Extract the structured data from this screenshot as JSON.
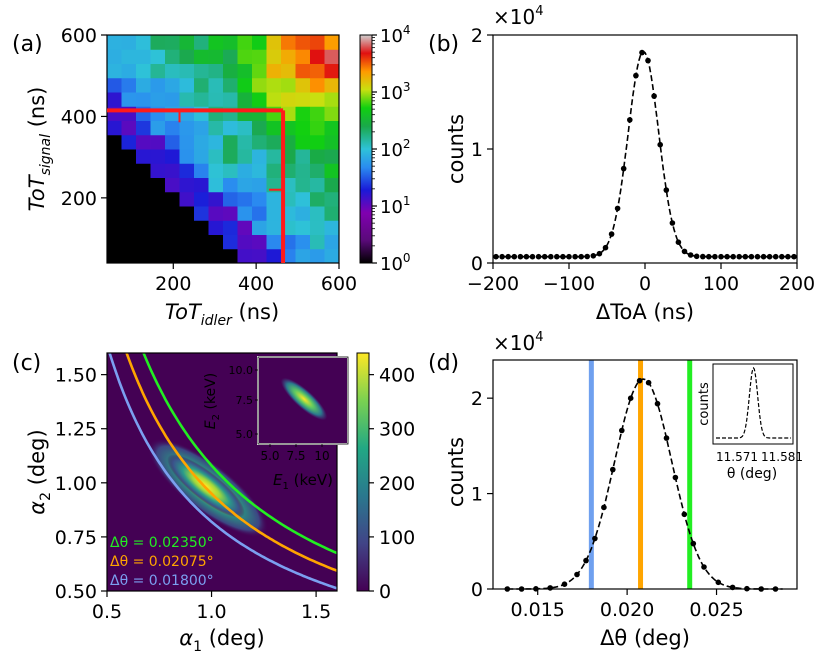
{
  "chart_data": [
    {
      "panel": "(a)",
      "type": "heatmap",
      "xlabel_main": "ToT",
      "xlabel_sub": "idler",
      "xlabel_unit": " (ns)",
      "ylabel_main": "ToT",
      "ylabel_sub": "signal",
      "ylabel_unit": " (ns)",
      "xlim": [
        40,
        600
      ],
      "ylim": [
        40,
        600
      ],
      "xticks": [
        200,
        400,
        600
      ],
      "yticks": [
        200,
        400,
        600
      ],
      "colorbar": {
        "scale": "log",
        "ticks": [
          {
            "base": "10",
            "exp": "0",
            "value": 1
          },
          {
            "base": "10",
            "exp": "1",
            "value": 10
          },
          {
            "base": "10",
            "exp": "2",
            "value": 100
          },
          {
            "base": "10",
            "exp": "3",
            "value": 1000
          },
          {
            "base": "10",
            "exp": "4",
            "value": 10000
          }
        ]
      },
      "cut_lines": {
        "signal_ns": 415,
        "idler_ns": 465,
        "color": "#ff1a1a"
      },
      "grid_size": 16
    },
    {
      "panel": "(b)",
      "type": "line",
      "xlabel": "ΔToA (ns)",
      "ylabel": "counts",
      "multiplier": {
        "base": "×10",
        "exp": "4"
      },
      "xlim": [
        -200,
        200
      ],
      "ylim": [
        0,
        2
      ],
      "xticks": [
        -200,
        -100,
        0,
        100,
        200
      ],
      "yticks": [
        0,
        1,
        2
      ],
      "fit": {
        "amplitude": 1.8,
        "center": -2,
        "sigma": 20,
        "baseline": 0.055
      },
      "points_x_step": 8
    },
    {
      "panel": "(c)",
      "type": "heatmap",
      "xlabel_main": "α",
      "xlabel_sub": "1",
      "xlabel_unit": " (deg)",
      "ylabel_main": "α",
      "ylabel_sub": "2",
      "ylabel_unit": " (deg)",
      "xlim": [
        0.5,
        1.6
      ],
      "ylim": [
        0.5,
        1.6
      ],
      "xticks": [
        0.5,
        1.0,
        1.5
      ],
      "yticks": [
        0.5,
        0.75,
        1.0,
        1.25,
        1.5
      ],
      "colorbar": {
        "min": 0,
        "max": 440,
        "ticks": [
          0,
          100,
          200,
          300,
          400
        ]
      },
      "curves": [
        {
          "label": "Δθ = 0.02350°",
          "product": 1.08,
          "color": "#22ee22"
        },
        {
          "label": "Δθ = 0.02075°",
          "product": 0.95,
          "color": "#ffa500"
        },
        {
          "label": "Δθ = 0.01800°",
          "product": 0.82,
          "color": "#7b9ff0"
        }
      ],
      "inset": {
        "type": "heatmap",
        "xlabel_main": "E",
        "xlabel_sub": "1",
        "xlabel_unit": " (keV)",
        "ylabel_main": "E",
        "ylabel_sub": "2",
        "ylabel_unit": " (keV)",
        "xticks": [
          "5.0",
          "7.5",
          "10"
        ],
        "yticks": [
          "5.0",
          "7.5",
          "10.0"
        ]
      }
    },
    {
      "panel": "(d)",
      "type": "line",
      "xlabel": "Δθ (deg)",
      "ylabel": "counts",
      "multiplier": {
        "base": "×10",
        "exp": "4"
      },
      "xlim": [
        0.0125,
        0.0295
      ],
      "ylim": [
        0,
        2.4
      ],
      "xticks": [
        0.015,
        0.02,
        0.025
      ],
      "xtick_labels": [
        "0.015",
        "0.020",
        "0.025"
      ],
      "yticks": [
        0,
        1,
        2
      ],
      "fit": {
        "amplitude": 2.2,
        "center": 0.0209,
        "sigma": 0.0016,
        "baseline": 0.0
      },
      "points_x": [
        0.0133,
        0.0141,
        0.0149,
        0.0157,
        0.0165,
        0.0172,
        0.0177,
        0.0182,
        0.0187,
        0.0192,
        0.0197,
        0.0202,
        0.0207,
        0.0212,
        0.0217,
        0.0222,
        0.0227,
        0.0232,
        0.0237,
        0.0243,
        0.0251,
        0.0259,
        0.0267,
        0.0275,
        0.0283
      ],
      "vlines": [
        {
          "x": 0.018,
          "color": "#6fa0ef"
        },
        {
          "x": 0.02075,
          "color": "#ffa500"
        },
        {
          "x": 0.0235,
          "color": "#22ee22"
        }
      ],
      "inset": {
        "type": "line",
        "ylabel": "counts",
        "xlabel": "θ (deg)",
        "xtick_labels": [
          "11.571",
          "11.581"
        ]
      }
    }
  ]
}
